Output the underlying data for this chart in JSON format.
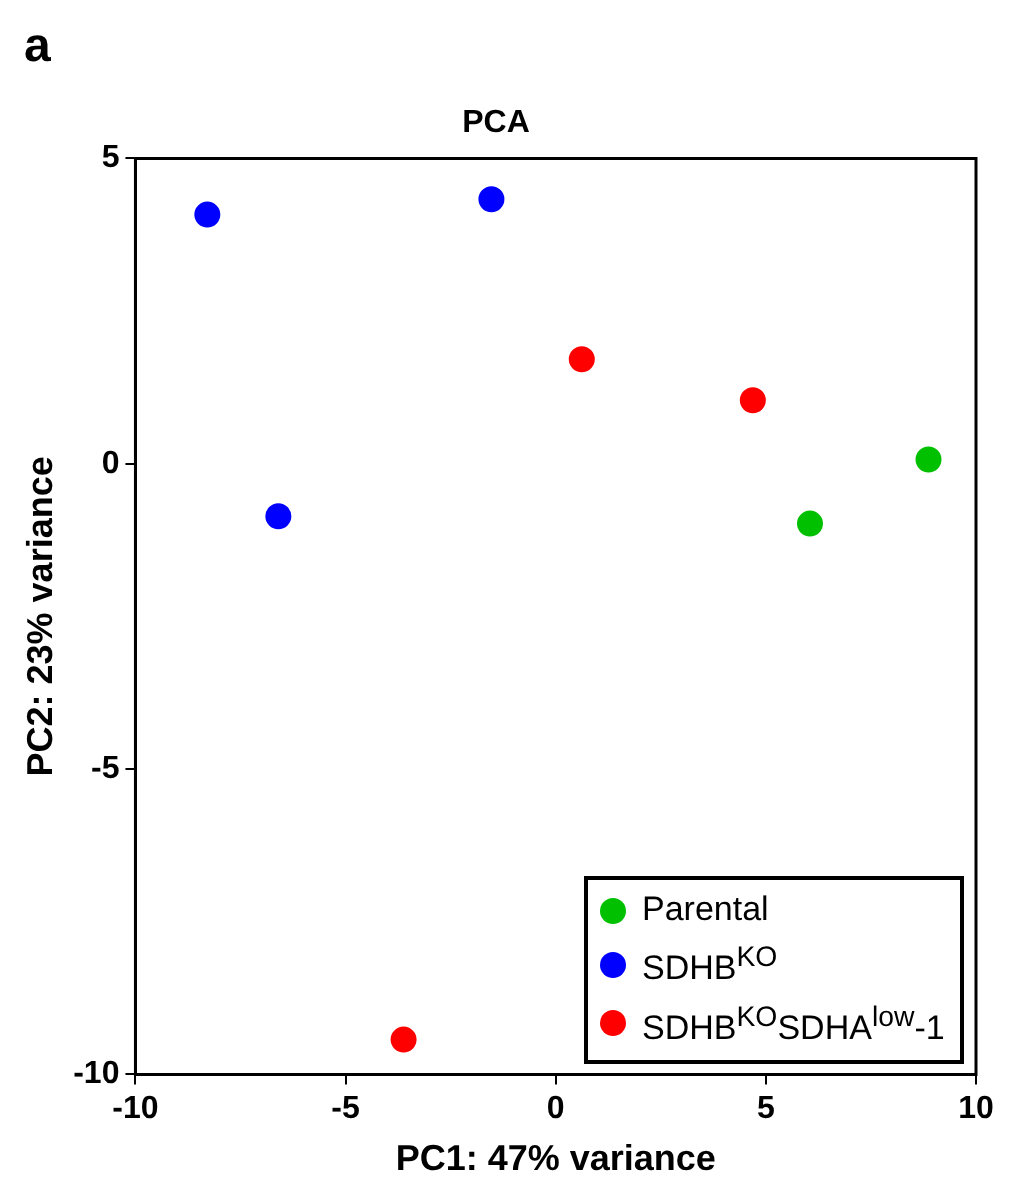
{
  "chart_data": {
    "type": "scatter",
    "title": "PCA",
    "xlabel": "PC1: 47% variance",
    "ylabel": "PC2: 23% variance",
    "annotations": [
      "a"
    ],
    "xlim": [
      -10,
      10
    ],
    "xticks": [
      -10,
      -5,
      0,
      5,
      10
    ],
    "ylim": [
      -10,
      5
    ],
    "yticks": [
      -10,
      -5,
      0,
      5
    ],
    "grid": false,
    "legend": "bottom right",
    "marker": "circle",
    "series": [
      {
        "name": "Parental",
        "color": "#00c000",
        "x": [
          6.05,
          8.87
        ],
        "values": [
          -0.98,
          0.07
        ]
      },
      {
        "name": "SDHB$^{KO}$",
        "color": "#0000ff",
        "x": [
          -8.29,
          -6.6,
          -1.53
        ],
        "values": [
          4.08,
          -0.86,
          4.33
        ]
      },
      {
        "name": "SDHB$^{KO}$SDHA$^{low}$-1",
        "color": "#ff0000",
        "x": [
          0.62,
          4.69,
          -3.62
        ],
        "values": [
          1.71,
          1.04,
          -9.43
        ]
      }
    ]
  }
}
